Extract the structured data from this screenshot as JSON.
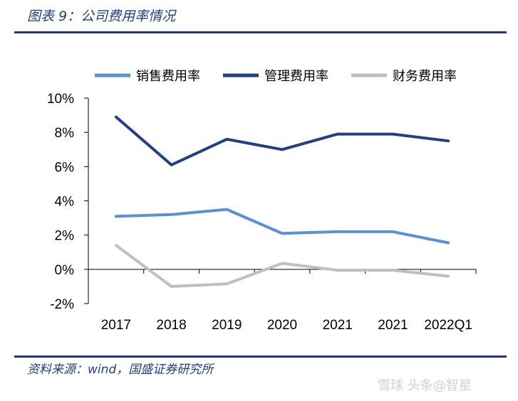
{
  "figure": {
    "title": "图表 9：公司费用率情况",
    "source": "资料来源：wind，国盛证券研究所",
    "watermark": "雪球 头条@智星"
  },
  "chart_data": {
    "type": "line",
    "categories": [
      "2017",
      "2018",
      "2019",
      "2020",
      "2021",
      "2021",
      "2022Q1"
    ],
    "ylim": [
      -0.02,
      0.1
    ],
    "yticks": [
      -0.02,
      0,
      0.02,
      0.04,
      0.06,
      0.08,
      0.1
    ],
    "ytick_labels": [
      "-2%",
      "0%",
      "2%",
      "4%",
      "6%",
      "8%",
      "10%"
    ],
    "legend_position": "top",
    "grid": false,
    "series": [
      {
        "name": "销售费用率",
        "color": "#5b8fd9",
        "values": [
          0.031,
          0.032,
          0.035,
          0.021,
          0.022,
          0.022,
          0.0155
        ]
      },
      {
        "name": "管理费用率",
        "color": "#213f88",
        "values": [
          0.089,
          0.061,
          0.076,
          0.07,
          0.079,
          0.079,
          0.075
        ]
      },
      {
        "name": "财务费用率",
        "color": "#bfbfbf",
        "values": [
          0.014,
          -0.01,
          -0.0085,
          0.0035,
          -0.0005,
          -0.0005,
          -0.004
        ]
      }
    ]
  }
}
